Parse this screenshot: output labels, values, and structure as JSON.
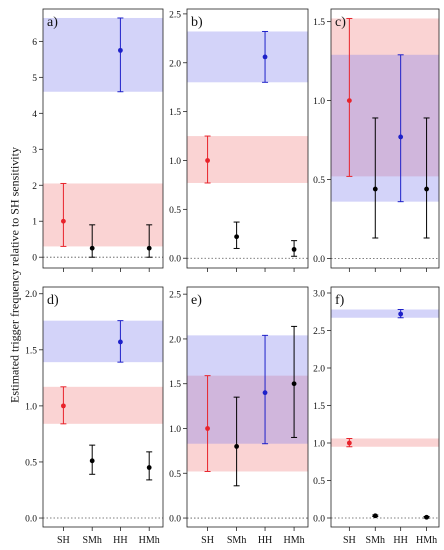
{
  "ylabel": "Estimated trigger frequency relative to SH sensitivity",
  "colors": {
    "SH": "#e8232b",
    "HH": "#1e21c9",
    "other": "#000000",
    "band_red": "#f7c6c6",
    "band_blue": "#c6c8f3",
    "band_overlap": "#d9b9dd"
  },
  "chart_data": [
    {
      "type": "scatter",
      "panel_label": "a)",
      "categories": [
        "SH",
        "SMh",
        "HH",
        "HMh"
      ],
      "ylim": [
        -0.3,
        6.9
      ],
      "yticks": [
        0,
        1,
        2,
        3,
        4,
        5,
        6
      ],
      "yticklabels": [
        "0",
        "1",
        "2",
        "3",
        "4",
        "5",
        "6"
      ],
      "show_xticklabels": false,
      "points": [
        {
          "category": "SH",
          "value": 1.0,
          "lower": 0.3,
          "upper": 2.05,
          "color": "SH"
        },
        {
          "category": "SMh",
          "value": 0.25,
          "lower": 0.0,
          "upper": 0.9,
          "color": "other"
        },
        {
          "category": "HH",
          "value": 5.75,
          "lower": 4.6,
          "upper": 6.65,
          "color": "HH"
        },
        {
          "category": "HMh",
          "value": 0.25,
          "lower": 0.0,
          "upper": 0.9,
          "color": "other"
        }
      ],
      "bands": [
        {
          "from": 0.3,
          "to": 2.05,
          "color": "band_red"
        },
        {
          "from": 4.6,
          "to": 6.65,
          "color": "band_blue"
        }
      ]
    },
    {
      "type": "scatter",
      "panel_label": "b)",
      "categories": [
        "SH",
        "SMh",
        "HH",
        "HMh"
      ],
      "ylim": [
        -0.1,
        2.55
      ],
      "yticks": [
        0.0,
        0.5,
        1.0,
        1.5,
        2.0,
        2.5
      ],
      "yticklabels": [
        "0.0",
        "0.5",
        "1.0",
        "1.5",
        "2.0",
        "2.5"
      ],
      "show_xticklabels": false,
      "points": [
        {
          "category": "SH",
          "value": 1.0,
          "lower": 0.77,
          "upper": 1.25,
          "color": "SH"
        },
        {
          "category": "SMh",
          "value": 0.22,
          "lower": 0.1,
          "upper": 0.37,
          "color": "other"
        },
        {
          "category": "HH",
          "value": 2.06,
          "lower": 1.8,
          "upper": 2.32,
          "color": "HH"
        },
        {
          "category": "HMh",
          "value": 0.09,
          "lower": 0.02,
          "upper": 0.18,
          "color": "other"
        }
      ],
      "bands": [
        {
          "from": 0.77,
          "to": 1.25,
          "color": "band_red"
        },
        {
          "from": 1.8,
          "to": 2.32,
          "color": "band_blue"
        }
      ]
    },
    {
      "type": "scatter",
      "panel_label": "c)",
      "categories": [
        "SH",
        "SMh",
        "HH",
        "HMh"
      ],
      "ylim": [
        -0.06,
        1.58
      ],
      "yticks": [
        0.0,
        0.5,
        1.0,
        1.5
      ],
      "yticklabels": [
        "0.0",
        "0.5",
        "1.0",
        "1.5"
      ],
      "show_xticklabels": false,
      "points": [
        {
          "category": "SH",
          "value": 1.0,
          "lower": 0.52,
          "upper": 1.52,
          "color": "SH"
        },
        {
          "category": "SMh",
          "value": 0.44,
          "lower": 0.13,
          "upper": 0.89,
          "color": "other"
        },
        {
          "category": "HH",
          "value": 0.77,
          "lower": 0.36,
          "upper": 1.29,
          "color": "HH"
        },
        {
          "category": "HMh",
          "value": 0.44,
          "lower": 0.13,
          "upper": 0.89,
          "color": "other"
        }
      ],
      "bands": [
        {
          "from": 0.52,
          "to": 1.52,
          "color": "band_red"
        },
        {
          "from": 0.36,
          "to": 1.29,
          "color": "band_blue"
        }
      ]
    },
    {
      "type": "scatter",
      "panel_label": "d)",
      "categories": [
        "SH",
        "SMh",
        "HH",
        "HMh"
      ],
      "ylim": [
        -0.08,
        2.06
      ],
      "yticks": [
        0.0,
        0.5,
        1.0,
        1.5,
        2.0
      ],
      "yticklabels": [
        "0.0",
        "0.5",
        "1.0",
        "1.5",
        "2.0"
      ],
      "show_xticklabels": true,
      "points": [
        {
          "category": "SH",
          "value": 1.0,
          "lower": 0.84,
          "upper": 1.17,
          "color": "SH"
        },
        {
          "category": "SMh",
          "value": 0.51,
          "lower": 0.39,
          "upper": 0.65,
          "color": "other"
        },
        {
          "category": "HH",
          "value": 1.57,
          "lower": 1.39,
          "upper": 1.76,
          "color": "HH"
        },
        {
          "category": "HMh",
          "value": 0.45,
          "lower": 0.34,
          "upper": 0.59,
          "color": "other"
        }
      ],
      "bands": [
        {
          "from": 0.84,
          "to": 1.17,
          "color": "band_red"
        },
        {
          "from": 1.39,
          "to": 1.76,
          "color": "band_blue"
        }
      ]
    },
    {
      "type": "scatter",
      "panel_label": "e)",
      "categories": [
        "SH",
        "SMh",
        "HH",
        "HMh"
      ],
      "ylim": [
        -0.1,
        2.58
      ],
      "yticks": [
        0.0,
        0.5,
        1.0,
        1.5,
        2.0,
        2.5
      ],
      "yticklabels": [
        "0.0",
        "0.5",
        "1.0",
        "1.5",
        "2.0",
        "2.5"
      ],
      "show_xticklabels": true,
      "points": [
        {
          "category": "SH",
          "value": 1.0,
          "lower": 0.52,
          "upper": 1.59,
          "color": "SH"
        },
        {
          "category": "SMh",
          "value": 0.8,
          "lower": 0.36,
          "upper": 1.35,
          "color": "other"
        },
        {
          "category": "HH",
          "value": 1.4,
          "lower": 0.83,
          "upper": 2.04,
          "color": "HH"
        },
        {
          "category": "HMh",
          "value": 1.5,
          "lower": 0.9,
          "upper": 2.14,
          "color": "other"
        }
      ],
      "bands": [
        {
          "from": 0.52,
          "to": 1.59,
          "color": "band_red"
        },
        {
          "from": 0.83,
          "to": 2.04,
          "color": "band_blue"
        }
      ]
    },
    {
      "type": "scatter",
      "panel_label": "f)",
      "categories": [
        "SH",
        "SMh",
        "HH",
        "HMh"
      ],
      "ylim": [
        -0.12,
        3.08
      ],
      "yticks": [
        0.0,
        0.5,
        1.0,
        1.5,
        2.0,
        2.5,
        3.0
      ],
      "yticklabels": [
        "0.0",
        "0.5",
        "1.0",
        "1.5",
        "2.0",
        "2.5",
        "3.0"
      ],
      "show_xticklabels": true,
      "points": [
        {
          "category": "SH",
          "value": 1.0,
          "lower": 0.95,
          "upper": 1.06,
          "color": "SH"
        },
        {
          "category": "SMh",
          "value": 0.03,
          "lower": 0.02,
          "upper": 0.04,
          "color": "other"
        },
        {
          "category": "HH",
          "value": 2.72,
          "lower": 2.67,
          "upper": 2.78,
          "color": "HH"
        },
        {
          "category": "HMh",
          "value": 0.01,
          "lower": 0.0,
          "upper": 0.02,
          "color": "other"
        }
      ],
      "bands": [
        {
          "from": 0.95,
          "to": 1.06,
          "color": "band_red"
        },
        {
          "from": 2.67,
          "to": 2.78,
          "color": "band_blue"
        }
      ]
    }
  ]
}
